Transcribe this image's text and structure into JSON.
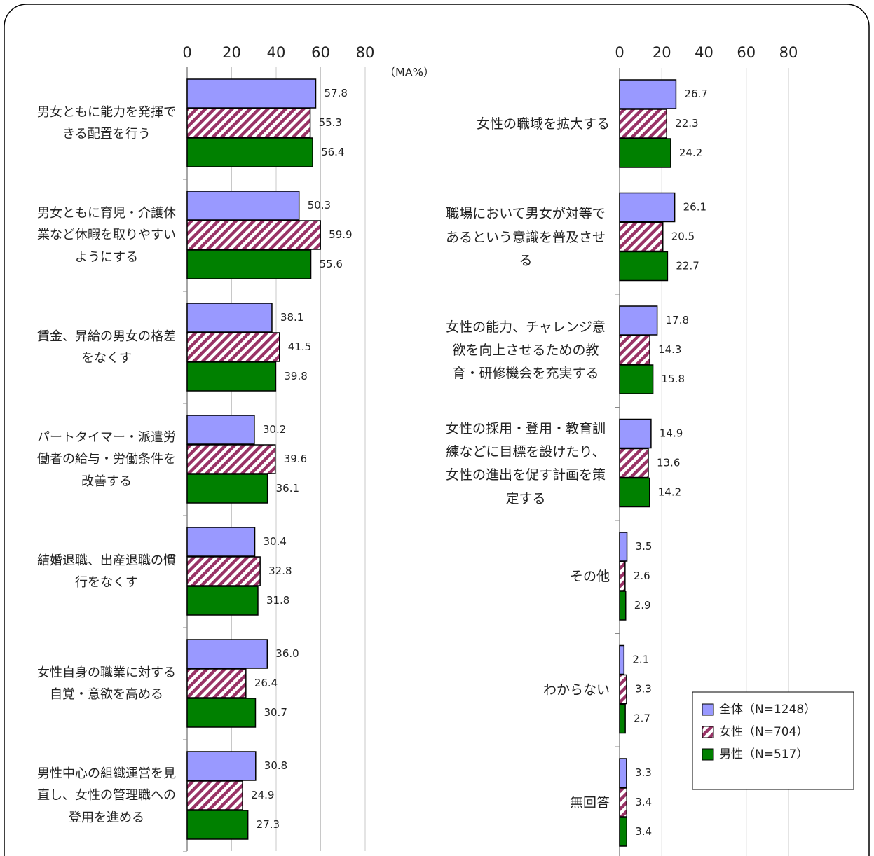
{
  "chart_data": [
    {
      "type": "barh",
      "annotation": "（MA%）",
      "categories": [
        "男女ともに能力を発揮できる配置を行う",
        "男女ともに育児・介護休業など休暇を取りやすいようにする",
        "賃金、昇給の男女の格差をなくす",
        "パートタイマー・派遣労働者の給与・労働条件を改善する",
        "結婚退職、出産退職の慣行をなくす",
        "女性自身の職業に対する自覚・意欲を高める",
        "男性中心の組織運営を見直し、女性の管理職への登用を進める"
      ],
      "series": [
        {
          "name": "全体（N=1248）",
          "color": "#9999ff",
          "values": [
            57.8,
            50.3,
            38.1,
            30.2,
            30.4,
            36.0,
            30.8
          ],
          "value_labels": [
            "57.8",
            "50.3",
            "38.1",
            "30.2",
            "30.4",
            "36.0",
            "30.8"
          ]
        },
        {
          "name": "女性（N=704）",
          "color": "#993366",
          "pattern": "hatch",
          "values": [
            55.3,
            59.9,
            41.5,
            39.6,
            32.8,
            26.4,
            24.9
          ],
          "value_labels": [
            "55.3",
            "59.9",
            "41.5",
            "39.6",
            "32.8",
            "26.4",
            "24.9"
          ]
        },
        {
          "name": "男性（N=517）",
          "color": "#008000",
          "values": [
            56.4,
            55.6,
            39.8,
            36.1,
            31.8,
            30.7,
            27.3
          ],
          "value_labels": [
            "56.4",
            "55.6",
            "39.8",
            "36.1",
            "31.8",
            "30.7",
            "27.3"
          ]
        }
      ],
      "xlim": [
        0,
        80
      ],
      "xticks": [
        0,
        20,
        40,
        60,
        80
      ],
      "grid": true
    },
    {
      "type": "barh",
      "categories": [
        "女性の職域を拡大する",
        "職場において男女が対等であるという意識を普及させる",
        "女性の能力、チャレンジ意欲を向上させるための教育・研修機会を充実する",
        "女性の採用・登用・教育訓練などに目標を設けたり、女性の進出を促す計画を策定する",
        "その他",
        "わからない",
        "無回答"
      ],
      "series": [
        {
          "color": "#9999ff",
          "values": [
            26.7,
            26.1,
            17.8,
            14.9,
            3.5,
            2.1,
            3.3
          ],
          "value_labels": [
            "26.7",
            "26.1",
            "17.8",
            "14.9",
            "3.5",
            "2.1",
            "3.3"
          ]
        },
        {
          "color": "#993366",
          "pattern": "hatch",
          "values": [
            22.3,
            20.5,
            14.3,
            13.6,
            2.6,
            3.3,
            3.4
          ],
          "value_labels": [
            "22.3",
            "20.5",
            "14.3",
            "13.6",
            "2.6",
            "3.3",
            "3.4"
          ]
        },
        {
          "color": "#008000",
          "values": [
            24.2,
            22.7,
            15.8,
            14.2,
            2.9,
            2.7,
            3.4
          ],
          "value_labels": [
            "24.2",
            "22.7",
            "15.8",
            "14.2",
            "2.9",
            "2.7",
            "3.4"
          ]
        }
      ],
      "xlim": [
        0,
        80
      ],
      "xticks": [
        0,
        20,
        40,
        60,
        80
      ],
      "grid": true,
      "legend": "lower right"
    }
  ]
}
